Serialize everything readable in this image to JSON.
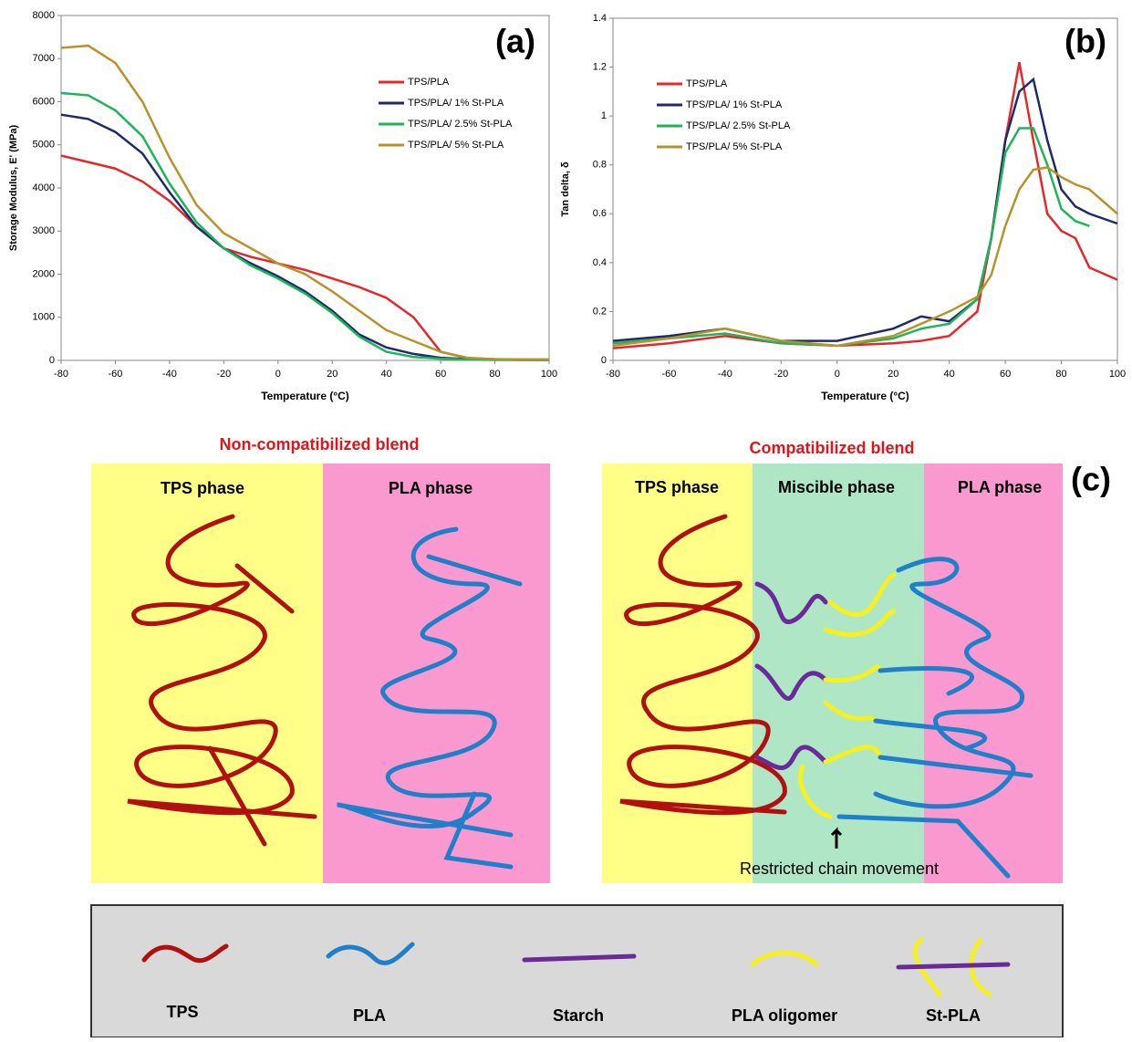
{
  "chart_data": [
    {
      "type": "line",
      "panel_label": "(a)",
      "x_label": "Temperature (°C)",
      "y_label": "Storage Modulus, E' (MPa)",
      "x": [
        -80,
        -70,
        -60,
        -50,
        -40,
        -30,
        -20,
        -10,
        0,
        10,
        20,
        30,
        40,
        50,
        60,
        70,
        80,
        90,
        100
      ],
      "xlim": [
        -80,
        100
      ],
      "xticks": [
        -80,
        -60,
        -40,
        -20,
        0,
        20,
        40,
        60,
        80,
        100
      ],
      "ylim": [
        0,
        8000
      ],
      "yticks": [
        0,
        1000,
        2000,
        3000,
        4000,
        5000,
        6000,
        7000,
        8000
      ],
      "legend": "upper right",
      "series": [
        {
          "name": "TPS/PLA",
          "color": "#e8262a",
          "values": [
            4750,
            4600,
            4450,
            4150,
            3700,
            3100,
            2600,
            2400,
            2250,
            2100,
            1900,
            1700,
            1450,
            1000,
            200,
            50,
            30,
            20,
            20
          ]
        },
        {
          "name": "TPS/PLA/ 1% St-PLA",
          "color": "#1f2a6b",
          "values": [
            5700,
            5600,
            5300,
            4800,
            3900,
            3100,
            2600,
            2250,
            1950,
            1600,
            1150,
            600,
            300,
            150,
            60,
            30,
            20,
            10,
            10
          ]
        },
        {
          "name": "TPS/PLA/ 2.5% St-PLA",
          "color": "#1db45a",
          "values": [
            6200,
            6150,
            5800,
            5200,
            4100,
            3200,
            2600,
            2200,
            1900,
            1550,
            1100,
            550,
            200,
            80,
            40,
            20,
            10,
            10,
            10
          ]
        },
        {
          "name": "TPS/PLA/ 5% St-PLA",
          "color": "#b8922a",
          "values": [
            7250,
            7300,
            6900,
            6000,
            4700,
            3600,
            2950,
            2600,
            2250,
            2000,
            1600,
            1150,
            700,
            450,
            200,
            60,
            30,
            20,
            20
          ]
        }
      ]
    },
    {
      "type": "line",
      "panel_label": "(b)",
      "x_label": "Temperature (°C)",
      "y_label": "Tan delta, δ",
      "x": [
        -80,
        -60,
        -40,
        -20,
        0,
        20,
        30,
        40,
        50,
        55,
        60,
        65,
        70,
        75,
        80,
        85,
        90,
        100
      ],
      "xlim": [
        -80,
        100
      ],
      "xticks": [
        -80,
        -60,
        -40,
        -20,
        0,
        20,
        40,
        60,
        80,
        100
      ],
      "ylim": [
        0,
        1.4
      ],
      "yticks": [
        0,
        0.2,
        0.4,
        0.6,
        0.8,
        1,
        1.2,
        1.4
      ],
      "legend": "upper left",
      "series": [
        {
          "name": "TPS/PLA",
          "color": "#e8262a",
          "values": [
            0.05,
            0.07,
            0.1,
            0.07,
            0.06,
            0.07,
            0.08,
            0.1,
            0.2,
            0.5,
            0.9,
            1.22,
            0.9,
            0.6,
            0.53,
            0.5,
            0.38,
            0.33
          ]
        },
        {
          "name": "TPS/PLA/ 1% St-PLA",
          "color": "#1f2a6b",
          "values": [
            0.08,
            0.1,
            0.13,
            0.08,
            0.08,
            0.13,
            0.18,
            0.16,
            0.25,
            0.5,
            0.9,
            1.1,
            1.15,
            0.9,
            0.7,
            0.63,
            0.6,
            0.56
          ]
        },
        {
          "name": "TPS/PLA/ 2.5% St-PLA",
          "color": "#1db45a",
          "values": [
            0.07,
            0.09,
            0.11,
            0.07,
            0.06,
            0.09,
            0.13,
            0.15,
            0.25,
            0.5,
            0.85,
            0.95,
            0.95,
            0.8,
            0.62,
            0.57,
            0.55,
            null
          ]
        },
        {
          "name": "TPS/PLA/ 5% St-PLA",
          "color": "#b8922a",
          "values": [
            0.06,
            0.09,
            0.13,
            0.08,
            0.06,
            0.1,
            0.15,
            0.2,
            0.26,
            0.35,
            0.55,
            0.7,
            0.78,
            0.79,
            0.75,
            0.72,
            0.7,
            0.6
          ]
        }
      ]
    }
  ],
  "diagram": {
    "panel_label": "(c)",
    "left_title": "Non-compatibilized blend",
    "right_title": "Compatibilized blend",
    "tps_phase": "TPS phase",
    "pla_phase": "PLA phase",
    "miscible_phase": "Miscible phase",
    "note": "Restricted chain movement",
    "legend": [
      "TPS",
      "PLA",
      "Starch",
      "PLA oligomer",
      "St-PLA"
    ]
  }
}
